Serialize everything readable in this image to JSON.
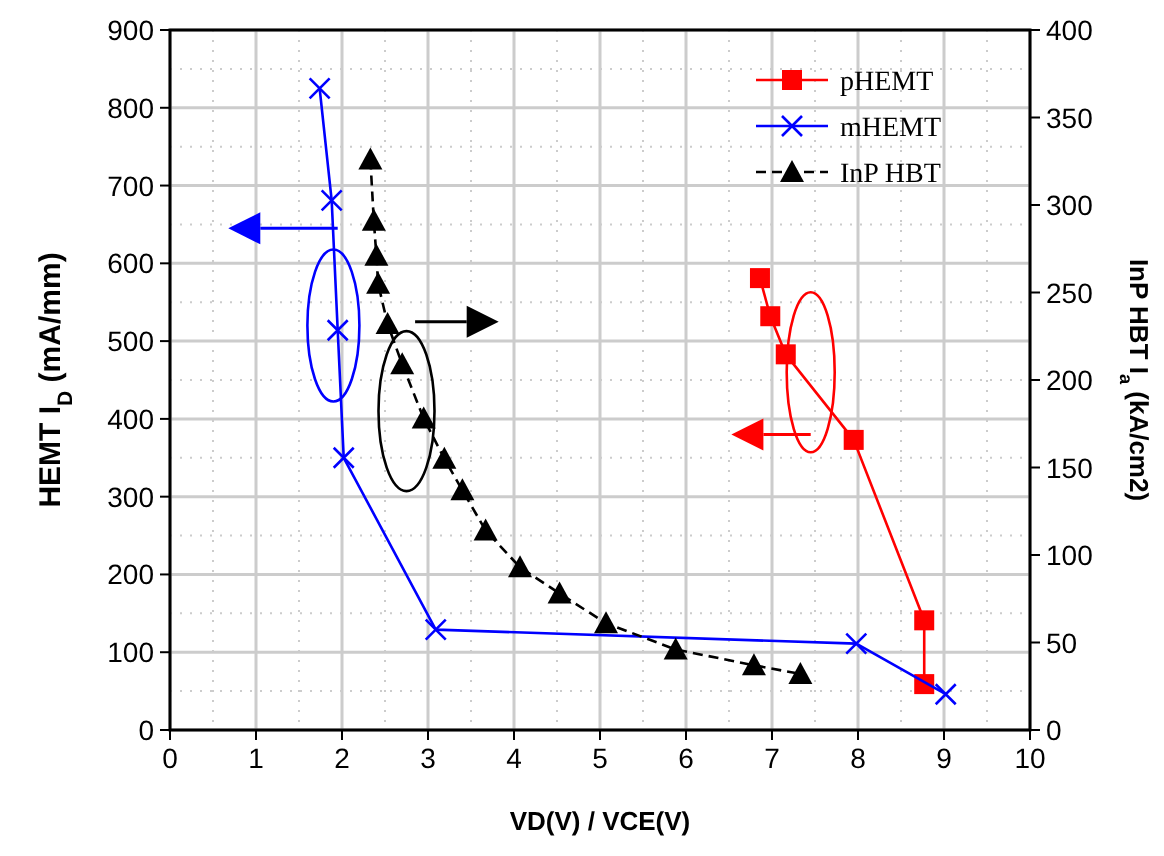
{
  "chart_data": {
    "type": "line",
    "xlabel": "VD(V) / VCE(V)",
    "ylabel": "HEMT I$_{D}$ (mA/mm)",
    "y2label": "InP HBT I$_{a}$ (kA/cm2)",
    "xlim": [
      0,
      10
    ],
    "xticks": [
      0,
      1,
      2,
      3,
      4,
      5,
      6,
      7,
      8,
      9,
      10
    ],
    "ylim": [
      0,
      900
    ],
    "yticks": [
      0,
      100,
      200,
      300,
      400,
      500,
      600,
      700,
      800,
      900
    ],
    "y2lim": [
      0,
      400
    ],
    "y2ticks": [
      0,
      50,
      100,
      150,
      200,
      250,
      300,
      350,
      400
    ],
    "grid": true,
    "legend": "top right",
    "series": [
      {
        "name": "pHEMT",
        "color": "#ff0000",
        "marker": "square",
        "line_style": "solid",
        "x": [
          6.86,
          6.98,
          7.16,
          7.95,
          8.77,
          8.77
        ],
        "values": [
          581,
          532,
          483,
          373,
          141,
          59
        ]
      },
      {
        "name": "mHEMT",
        "color": "#0000ff",
        "marker": "cross",
        "line_style": "solid",
        "x": [
          1.74,
          1.88,
          1.95,
          2.02,
          3.09,
          7.98,
          9.02
        ],
        "values": [
          825,
          681,
          514,
          350,
          129,
          111,
          46
        ]
      },
      {
        "name": "InP HBT",
        "color": "#000000",
        "marker": "triangle",
        "line_style": "dashed",
        "axis": "y2",
        "x": [
          2.33,
          2.37,
          2.4,
          2.42,
          2.53,
          2.7,
          2.95,
          3.19,
          3.4,
          3.67,
          4.07,
          4.53,
          5.07,
          5.88,
          6.79,
          7.33
        ],
        "values": [
          326,
          291,
          271,
          255,
          232,
          209,
          178,
          155,
          137,
          114,
          93,
          78,
          61,
          46,
          37,
          32
        ]
      }
    ]
  }
}
